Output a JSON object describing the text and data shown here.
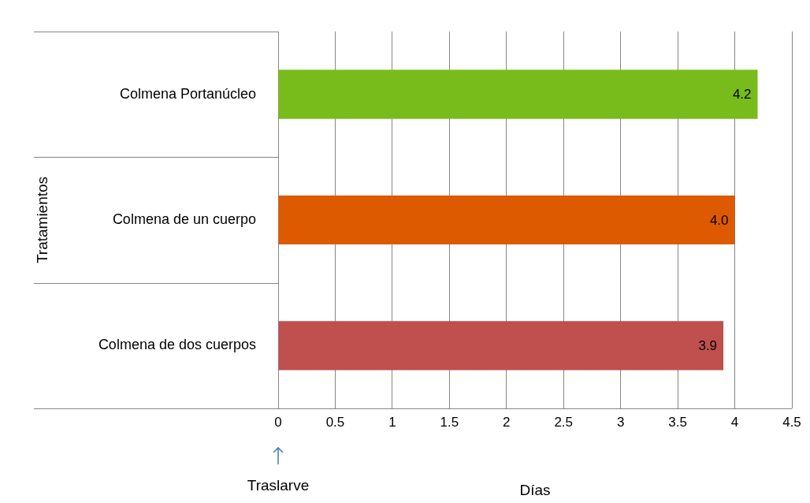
{
  "chart_data": {
    "type": "bar",
    "orientation": "horizontal",
    "categories": [
      "Colmena Portanúcleo",
      "Colmena de un cuerpo",
      "Colmena de dos cuerpos"
    ],
    "values": [
      4.2,
      4.0,
      3.9
    ],
    "colors": [
      "#77bc1a",
      "#dd5a00",
      "#c0504d"
    ],
    "value_labels": [
      "4.2",
      "4.0",
      "3.9"
    ],
    "xlim": [
      0,
      4.5
    ],
    "xticks": [
      0,
      0.5,
      1,
      1.5,
      2,
      2.5,
      3,
      3.5,
      4,
      4.5
    ],
    "xlabel": "Días",
    "ylabel": "Tratamientos",
    "grid": "x",
    "legend": false,
    "annotations": [
      "Traslarve"
    ]
  }
}
